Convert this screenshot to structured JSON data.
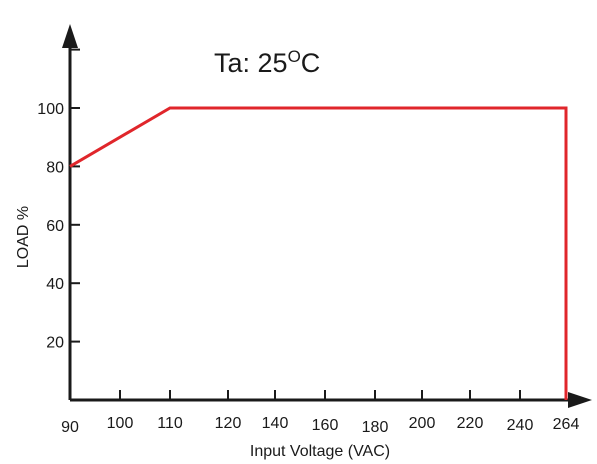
{
  "chart_data": {
    "type": "line",
    "title_prefix": "Ta: 25",
    "title_superscript": "O",
    "title_suffix": "C",
    "xlabel": "Input Voltage (VAC)",
    "ylabel": "LOAD %",
    "x_ticks": [
      90,
      100,
      110,
      120,
      140,
      160,
      180,
      200,
      220,
      240,
      264
    ],
    "y_ticks": [
      20,
      40,
      60,
      80,
      100
    ],
    "grid": false,
    "line_color": "#e0262b",
    "axis_color": "#1a1a1a",
    "series": [
      {
        "points": [
          {
            "x": 90,
            "y": 80
          },
          {
            "x": 110,
            "y": 100
          },
          {
            "x": 264,
            "y": 100
          },
          {
            "x": 264,
            "y": 0
          }
        ]
      }
    ]
  }
}
